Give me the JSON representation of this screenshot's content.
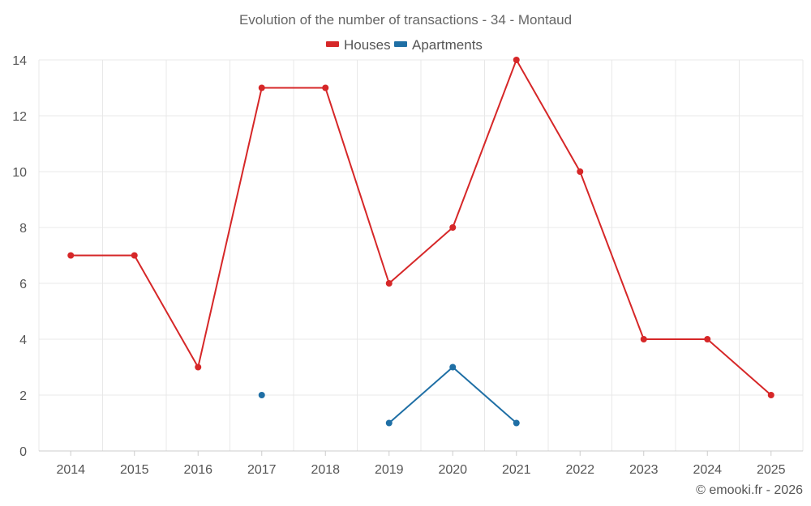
{
  "chart_data": {
    "type": "line",
    "title": "Evolution of the number of transactions - 34 - Montaud",
    "categories": [
      "2014",
      "2015",
      "2016",
      "2017",
      "2018",
      "2019",
      "2020",
      "2021",
      "2022",
      "2023",
      "2024",
      "2025"
    ],
    "ylim": [
      0,
      14
    ],
    "yticks": [
      0,
      2,
      4,
      6,
      8,
      10,
      12,
      14
    ],
    "grid": true,
    "legend_position": "top-center",
    "series": [
      {
        "name": "Houses",
        "color": "#d62728",
        "values": [
          7,
          7,
          3,
          13,
          13,
          6,
          8,
          14,
          10,
          4,
          4,
          2
        ]
      },
      {
        "name": "Apartments",
        "color": "#1f6fa5",
        "values": [
          null,
          null,
          null,
          2,
          null,
          1,
          3,
          1,
          null,
          null,
          null,
          null
        ]
      }
    ]
  },
  "credit": "© emooki.fr - 2026"
}
